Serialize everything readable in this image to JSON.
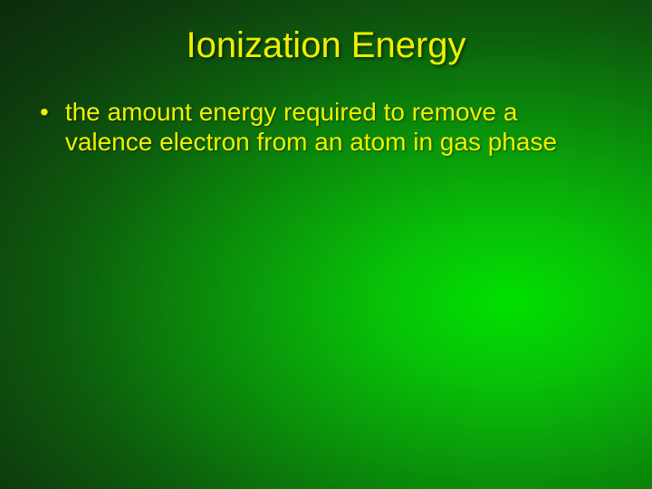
{
  "slide": {
    "title": "Ionization Energy",
    "bullets": [
      {
        "marker": "•",
        "text": "the amount energy required to remove a valence electron from an atom in gas phase"
      }
    ],
    "colors": {
      "text_color": "#f0f000",
      "gradient_inner": "#00e000",
      "gradient_outer": "#0d2a0d"
    },
    "typography": {
      "title_fontsize": 40,
      "body_fontsize": 28,
      "font_family": "Arial"
    }
  }
}
